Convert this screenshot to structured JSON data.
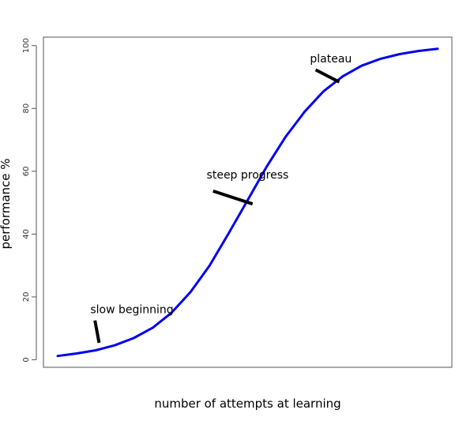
{
  "chart_data": {
    "type": "line",
    "title": "",
    "xlabel": "number of attempts at learning",
    "ylabel": "performance %",
    "ylim": [
      -2.4,
      102.7
    ],
    "xlim": [
      0,
      100
    ],
    "y_ticks": [
      0,
      20,
      40,
      60,
      80,
      100
    ],
    "x_ticks": [],
    "grid": false,
    "legend": "none",
    "line_color": "#0000ee",
    "series": [
      {
        "x": [
          0,
          5,
          10,
          15,
          20,
          25,
          30,
          35,
          40,
          45,
          50,
          55,
          60,
          65,
          70,
          75,
          80,
          85,
          90,
          95,
          100
        ],
        "values": [
          1.2,
          2.0,
          3.0,
          4.6,
          6.9,
          10.2,
          15.0,
          21.6,
          30.0,
          40.3,
          50.8,
          61.5,
          71.0,
          79.0,
          85.5,
          90.2,
          93.6,
          95.8,
          97.3,
          98.3,
          99.0
        ]
      }
    ],
    "annotations": [
      {
        "text": "slow beginning",
        "x": 8.6,
        "y": 14.8,
        "pointer_from": [
          9.8,
          12.5
        ],
        "pointer_to": [
          10.9,
          5.4
        ]
      },
      {
        "text": "steep progress",
        "x": 39.2,
        "y": 57.7,
        "pointer_from": [
          40.9,
          53.7
        ],
        "pointer_to": [
          51.3,
          49.6
        ]
      },
      {
        "text": "plateau",
        "x": 66.4,
        "y": 94.6,
        "pointer_from": [
          67.9,
          92.3
        ],
        "pointer_to": [
          74.1,
          88.4
        ]
      }
    ]
  }
}
